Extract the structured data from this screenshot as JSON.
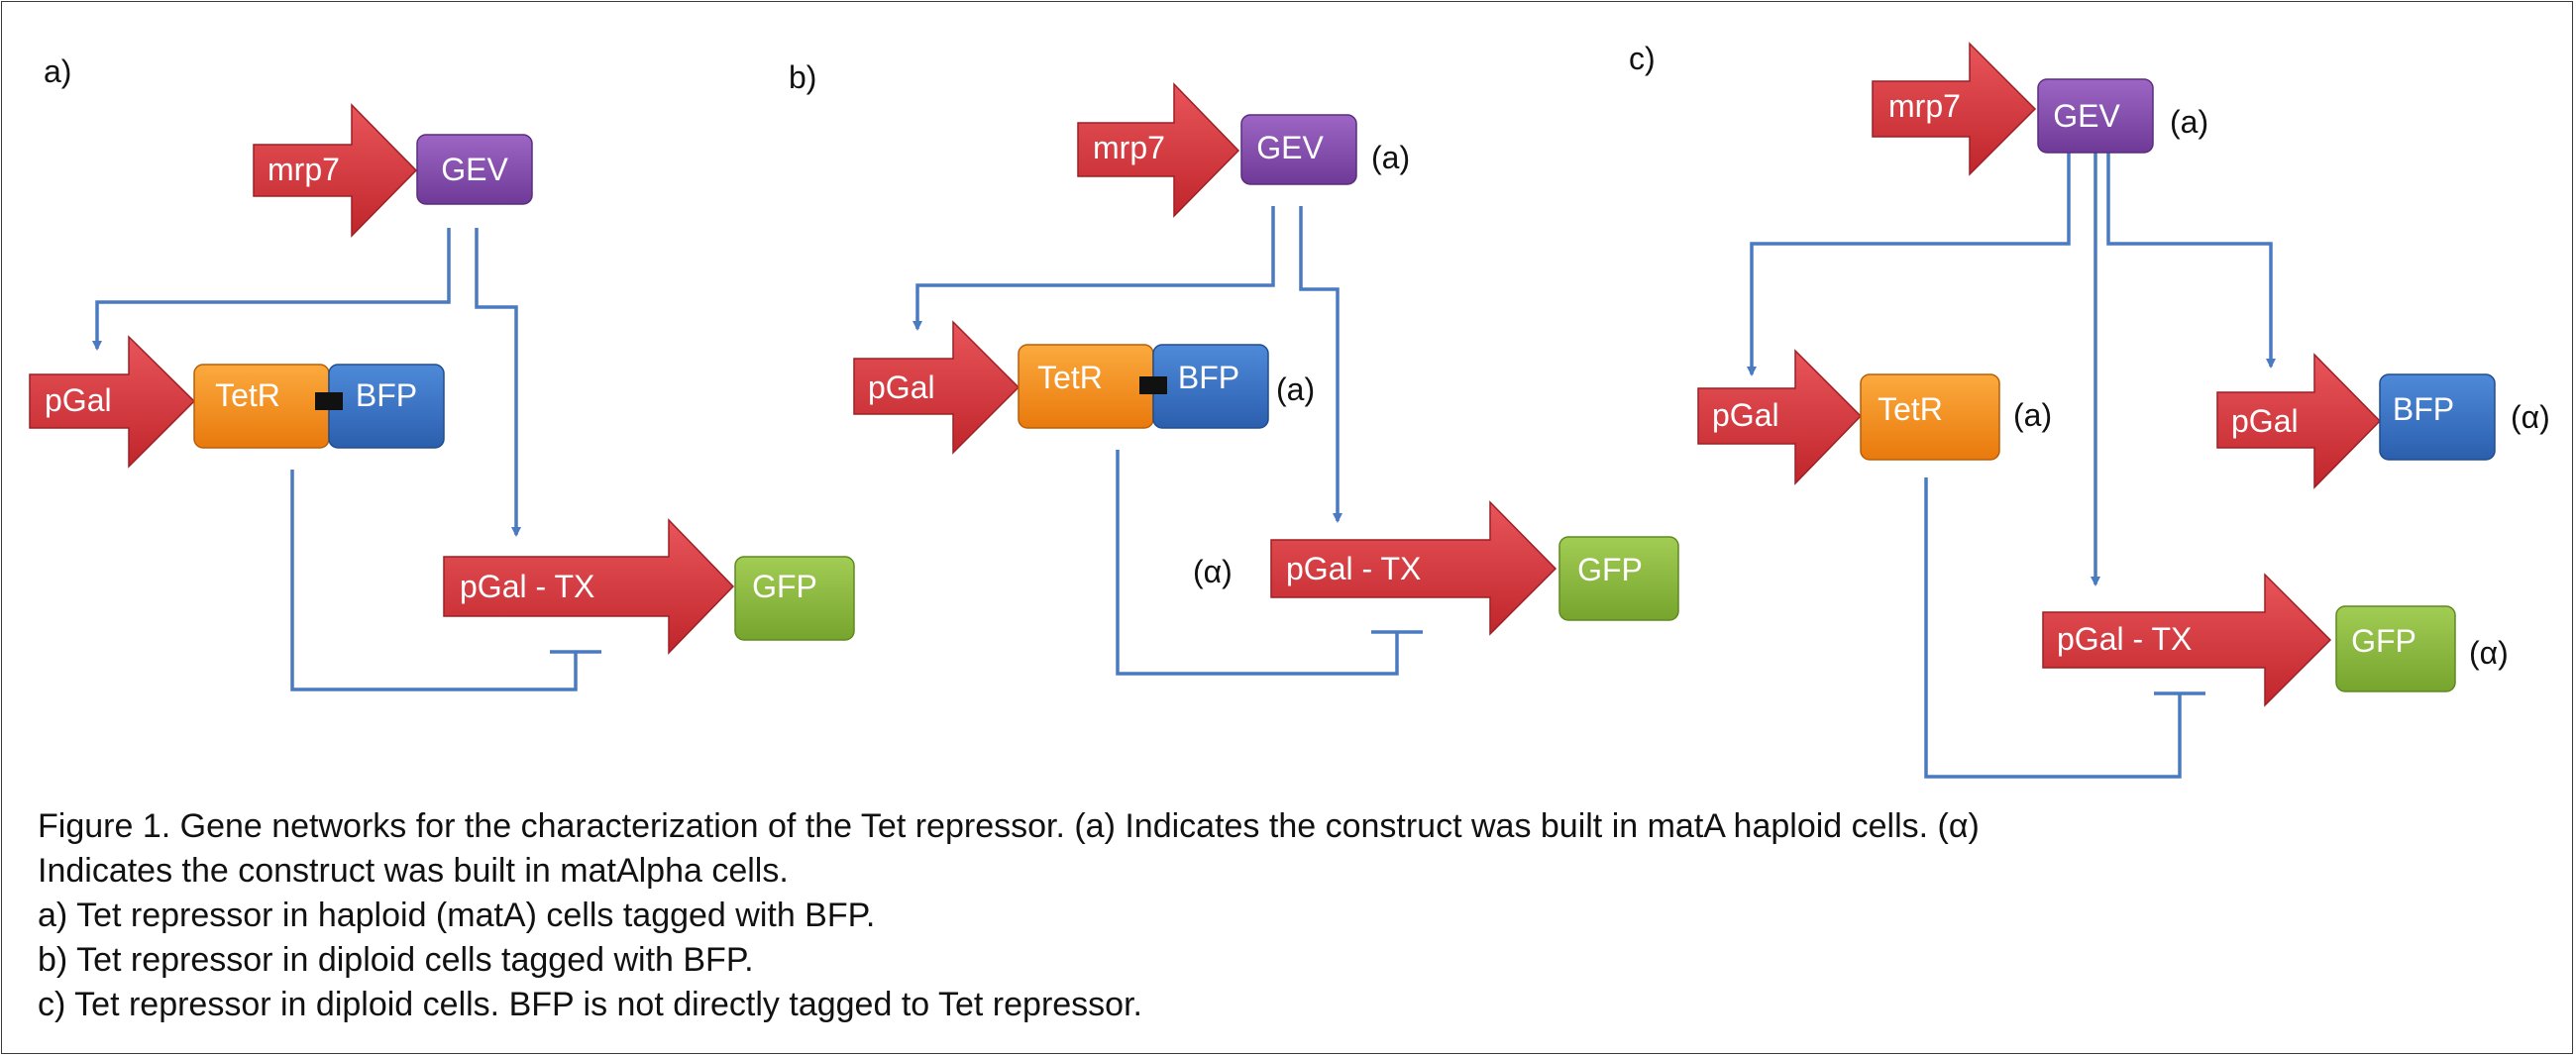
{
  "panels": [
    {
      "label": "a)",
      "nodes": {
        "mrp7": "mrp7",
        "gev": "GEV",
        "pgal": "pGal",
        "tetr": "TetR",
        "bfp": "BFP",
        "pgaltx": "pGal - TX",
        "gfp": "GFP"
      },
      "annotations": []
    },
    {
      "label": "b)",
      "nodes": {
        "mrp7": "mrp7",
        "gev": "GEV",
        "pgal": "pGal",
        "tetr": "TetR",
        "bfp": "BFP",
        "pgaltx": "pGal - TX",
        "gfp": "GFP"
      },
      "annotations": [
        "(a)",
        "(a)",
        "(α)"
      ]
    },
    {
      "label": "c)",
      "nodes": {
        "mrp7": "mrp7",
        "gev": "GEV",
        "pgal1": "pGal",
        "tetr": "TetR",
        "pgal2": "pGal",
        "bfp": "BFP",
        "pgaltx": "pGal - TX",
        "gfp": "GFP"
      },
      "annotations": [
        "(a)",
        "(a)",
        "(α)",
        "(α)"
      ]
    }
  ],
  "caption": [
    "Figure 1. Gene networks for the characterization of the Tet repressor. (a) Indicates the construct was built in matA haploid cells. (α)",
    "Indicates the construct was built in matAlpha cells.",
    "a) Tet repressor in haploid (matA) cells tagged with BFP.",
    "b) Tet repressor in diploid cells tagged with BFP.",
    "c) Tet repressor in diploid cells. BFP is not directly tagged to Tet repressor."
  ],
  "colors": {
    "promoter": "#d9343a",
    "gev": "#8b4fb3",
    "tetr": "#f4901e",
    "bfp": "#3a74c9",
    "gfp": "#8ebd3e",
    "line": "#4a7ac0",
    "tag": "#111111"
  }
}
